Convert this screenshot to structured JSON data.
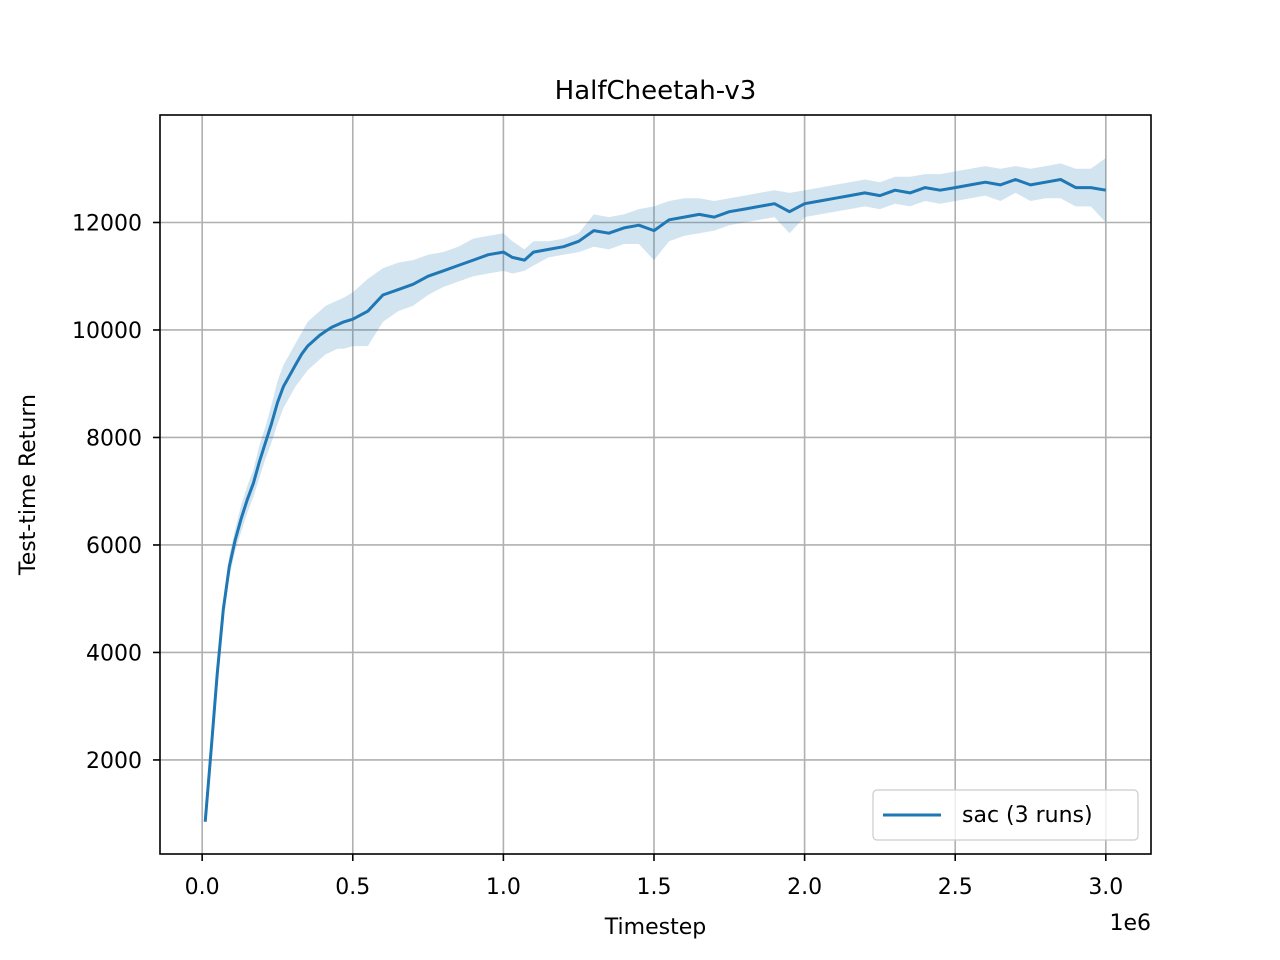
{
  "chart_data": {
    "type": "line",
    "title": "HalfCheetah-v3",
    "xlabel": "Timestep",
    "ylabel": "Test-time Return",
    "x_offset_label": "1e6",
    "xlim": [
      -0.14,
      3.15
    ],
    "ylim": [
      250,
      14000
    ],
    "xticks": [
      0.0,
      0.5,
      1.0,
      1.5,
      2.0,
      2.5,
      3.0
    ],
    "xtick_labels": [
      "0.0",
      "0.5",
      "1.0",
      "1.5",
      "2.0",
      "2.5",
      "3.0"
    ],
    "yticks": [
      2000,
      4000,
      6000,
      8000,
      10000,
      12000
    ],
    "ytick_labels": [
      "2000",
      "4000",
      "6000",
      "8000",
      "10000",
      "12000"
    ],
    "grid": true,
    "legend": {
      "position": "bottom-right",
      "entries": [
        "sac (3 runs)"
      ]
    },
    "colors": {
      "line": "#1f77b4",
      "band": "#1f77b4"
    },
    "series": [
      {
        "name": "sac (3 runs)",
        "x": [
          0.01,
          0.03,
          0.05,
          0.07,
          0.09,
          0.11,
          0.13,
          0.15,
          0.17,
          0.19,
          0.21,
          0.23,
          0.25,
          0.27,
          0.29,
          0.31,
          0.33,
          0.35,
          0.37,
          0.39,
          0.41,
          0.43,
          0.45,
          0.47,
          0.5,
          0.55,
          0.6,
          0.65,
          0.7,
          0.75,
          0.8,
          0.85,
          0.9,
          0.95,
          1.0,
          1.03,
          1.07,
          1.1,
          1.15,
          1.2,
          1.25,
          1.3,
          1.35,
          1.4,
          1.45,
          1.5,
          1.55,
          1.6,
          1.65,
          1.7,
          1.75,
          1.8,
          1.85,
          1.9,
          1.95,
          2.0,
          2.05,
          2.1,
          2.15,
          2.2,
          2.25,
          2.3,
          2.35,
          2.4,
          2.45,
          2.5,
          2.55,
          2.6,
          2.65,
          2.7,
          2.75,
          2.8,
          2.85,
          2.9,
          2.95,
          3.0
        ],
        "y": [
          850,
          2200,
          3600,
          4800,
          5600,
          6100,
          6500,
          6850,
          7150,
          7550,
          7900,
          8250,
          8650,
          8950,
          9150,
          9350,
          9550,
          9700,
          9800,
          9900,
          9980,
          10050,
          10100,
          10150,
          10200,
          10350,
          10650,
          10750,
          10850,
          11000,
          11100,
          11200,
          11300,
          11400,
          11450,
          11350,
          11300,
          11450,
          11500,
          11550,
          11650,
          11850,
          11800,
          11900,
          11950,
          11850,
          12050,
          12100,
          12150,
          12100,
          12200,
          12250,
          12300,
          12350,
          12200,
          12350,
          12400,
          12450,
          12500,
          12550,
          12500,
          12600,
          12550,
          12650,
          12600,
          12650,
          12700,
          12750,
          12700,
          12800,
          12700,
          12750,
          12800,
          12650,
          12650,
          12600
        ],
        "lower": [
          850,
          2150,
          3500,
          4650,
          5400,
          5900,
          6250,
          6600,
          6900,
          7250,
          7600,
          7900,
          8250,
          8550,
          8750,
          8950,
          9100,
          9250,
          9350,
          9450,
          9550,
          9600,
          9650,
          9650,
          9700,
          9700,
          10150,
          10350,
          10450,
          10650,
          10800,
          10900,
          11000,
          11050,
          11100,
          11050,
          11100,
          11200,
          11350,
          11400,
          11450,
          11550,
          11500,
          11600,
          11600,
          11300,
          11650,
          11750,
          11800,
          11850,
          11950,
          12000,
          12050,
          12100,
          11800,
          12100,
          12150,
          12200,
          12250,
          12300,
          12250,
          12350,
          12300,
          12400,
          12350,
          12400,
          12450,
          12500,
          12400,
          12550,
          12400,
          12450,
          12450,
          12300,
          12300,
          12000
        ],
        "upper": [
          850,
          2250,
          3700,
          4950,
          5800,
          6300,
          6750,
          7100,
          7400,
          7850,
          8200,
          8600,
          9050,
          9350,
          9550,
          9750,
          9950,
          10150,
          10250,
          10350,
          10450,
          10500,
          10550,
          10600,
          10700,
          10950,
          11150,
          11250,
          11300,
          11400,
          11450,
          11550,
          11700,
          11750,
          11800,
          11650,
          11500,
          11650,
          11650,
          11700,
          11800,
          12150,
          12100,
          12150,
          12250,
          12300,
          12400,
          12450,
          12450,
          12400,
          12450,
          12500,
          12550,
          12600,
          12550,
          12600,
          12650,
          12700,
          12750,
          12800,
          12750,
          12850,
          12850,
          12900,
          12900,
          12950,
          13000,
          13050,
          13000,
          13050,
          13000,
          13050,
          13100,
          13000,
          13000,
          13200
        ]
      }
    ]
  }
}
